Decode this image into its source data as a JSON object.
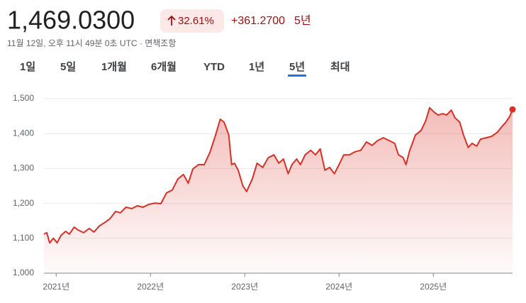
{
  "header": {
    "price": "1,469.0300",
    "change_percent": "32.61%",
    "change": "+361.2700",
    "period": "5년",
    "timestamp": "11월 12일, 오후 11시 49분 0초 UTC · 면책조항"
  },
  "tabs": [
    {
      "label": "1일"
    },
    {
      "label": "5일"
    },
    {
      "label": "1개월"
    },
    {
      "label": "6개월"
    },
    {
      "label": "YTD"
    },
    {
      "label": "1년"
    },
    {
      "label": "5년",
      "selected": true
    },
    {
      "label": "최대"
    }
  ],
  "chart_data": {
    "type": "line",
    "color": "#d93025",
    "grid": true,
    "x": [
      2020.87,
      2020.9,
      2020.93,
      2020.97,
      2021.01,
      2021.05,
      2021.1,
      2021.14,
      2021.19,
      2021.23,
      2021.29,
      2021.35,
      2021.4,
      2021.46,
      2021.52,
      2021.57,
      2021.63,
      2021.68,
      2021.74,
      2021.8,
      2021.86,
      2021.92,
      2021.98,
      2022.05,
      2022.11,
      2022.17,
      2022.23,
      2022.29,
      2022.35,
      2022.4,
      2022.45,
      2022.51,
      2022.57,
      2022.63,
      2022.69,
      2022.74,
      2022.78,
      2022.83,
      2022.86,
      2022.89,
      2022.93,
      2022.98,
      2023.02,
      2023.08,
      2023.13,
      2023.19,
      2023.25,
      2023.31,
      2023.36,
      2023.41,
      2023.46,
      2023.5,
      2023.55,
      2023.59,
      2023.64,
      2023.7,
      2023.75,
      2023.8,
      2023.85,
      2023.9,
      2023.95,
      2024.0,
      2024.05,
      2024.11,
      2024.17,
      2024.23,
      2024.29,
      2024.35,
      2024.41,
      2024.47,
      2024.53,
      2024.59,
      2024.63,
      2024.68,
      2024.71,
      2024.75,
      2024.81,
      2024.87,
      2024.92,
      2024.96,
      2025.01,
      2025.05,
      2025.1,
      2025.14,
      2025.19,
      2025.23,
      2025.28,
      2025.32,
      2025.37,
      2025.41,
      2025.46,
      2025.5,
      2025.56,
      2025.62,
      2025.68,
      2025.73,
      2025.77,
      2025.81,
      2025.84
    ],
    "values": [
      1112,
      1116,
      1087,
      1100,
      1087,
      1108,
      1120,
      1112,
      1132,
      1124,
      1116,
      1128,
      1118,
      1136,
      1146,
      1156,
      1177,
      1173,
      1189,
      1185,
      1193,
      1189,
      1197,
      1201,
      1199,
      1230,
      1238,
      1270,
      1283,
      1258,
      1299,
      1311,
      1311,
      1346,
      1396,
      1441,
      1433,
      1396,
      1311,
      1315,
      1295,
      1250,
      1234,
      1270,
      1315,
      1303,
      1331,
      1339,
      1315,
      1327,
      1285,
      1311,
      1327,
      1311,
      1339,
      1352,
      1339,
      1356,
      1295,
      1303,
      1285,
      1311,
      1339,
      1339,
      1348,
      1352,
      1376,
      1366,
      1380,
      1388,
      1380,
      1372,
      1339,
      1331,
      1311,
      1352,
      1396,
      1409,
      1437,
      1474,
      1461,
      1453,
      1457,
      1453,
      1467,
      1445,
      1433,
      1396,
      1360,
      1372,
      1364,
      1384,
      1388,
      1392,
      1404,
      1421,
      1433,
      1449,
      1469
    ],
    "xlim": [
      2020.87,
      2025.84
    ],
    "xticks": [
      {
        "value": 2021,
        "label": "2021년"
      },
      {
        "value": 2022,
        "label": "2022년"
      },
      {
        "value": 2023,
        "label": "2023년"
      },
      {
        "value": 2024,
        "label": "2024년"
      },
      {
        "value": 2025,
        "label": "2025년"
      }
    ],
    "ylim": [
      1000,
      1500
    ],
    "yticks": [
      {
        "value": 1000,
        "label": "1,000"
      },
      {
        "value": 1100,
        "label": "1,100"
      },
      {
        "value": 1200,
        "label": "1,200"
      },
      {
        "value": 1300,
        "label": "1,300"
      },
      {
        "value": 1400,
        "label": "1,400"
      },
      {
        "value": 1500,
        "label": "1,500"
      }
    ]
  }
}
